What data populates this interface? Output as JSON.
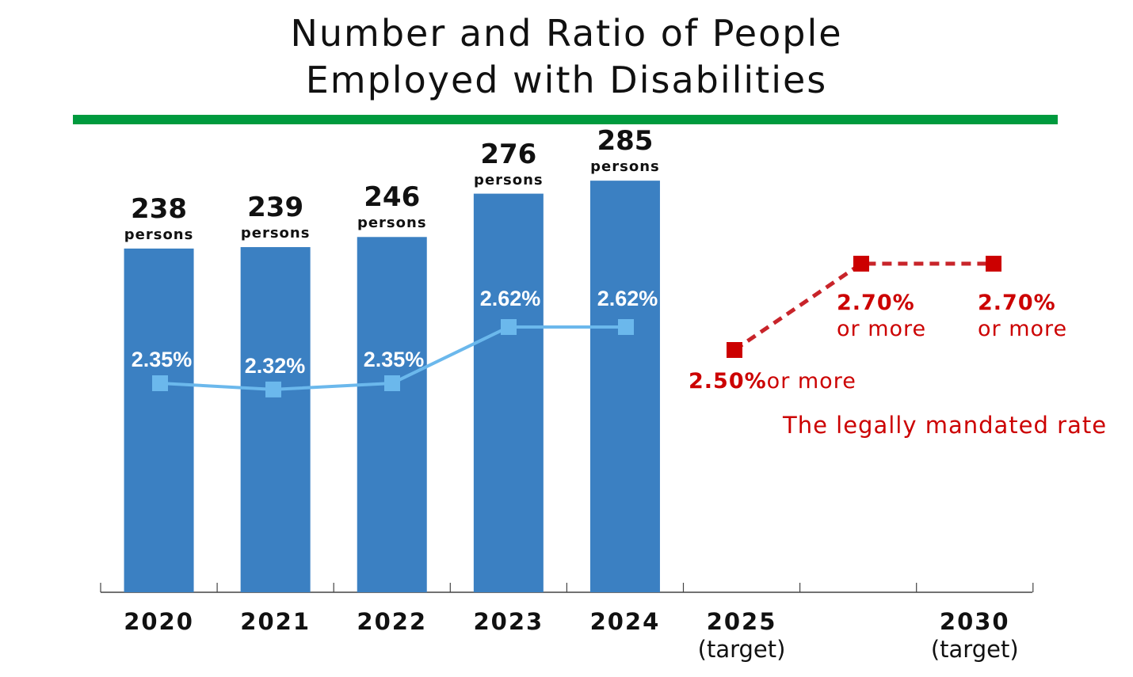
{
  "title": {
    "line1": "Number and Ratio of People",
    "line2": "Employed with Disabilities"
  },
  "colors": {
    "bar": "#3b80c2",
    "ratio_line": "#6bb8ec",
    "target": "#cc0000",
    "rule": "#009a3e"
  },
  "chart_data": {
    "type": "bar+line",
    "categories": [
      "2020",
      "2021",
      "2022",
      "2023",
      "2024",
      "2025",
      "",
      "2030"
    ],
    "category_sublabels": {
      "2025": "(target)",
      "2030": "(target)"
    },
    "unit_label": "persons",
    "series": [
      {
        "type": "bar",
        "x": [
          "2020",
          "2021",
          "2022",
          "2023",
          "2024"
        ],
        "values": [
          238,
          239,
          246,
          276,
          285
        ],
        "labels": [
          "238",
          "239",
          "246",
          "276",
          "285"
        ]
      },
      {
        "type": "line",
        "x": [
          "2020",
          "2021",
          "2022",
          "2023",
          "2024"
        ],
        "values": [
          2.35,
          2.32,
          2.35,
          2.62,
          2.62
        ],
        "labels": [
          "2.35%",
          "2.32%",
          "2.35%",
          "2.62%",
          "2.62%"
        ]
      },
      {
        "type": "line-dashed",
        "name": "The legally mandated rate",
        "x": [
          "2025",
          "",
          "2030"
        ],
        "values": [
          2.5,
          2.7,
          2.7
        ],
        "labels": [
          "2.50%or more",
          "2.70%\nor more",
          "2.70%\nor more"
        ]
      }
    ],
    "grid": false
  }
}
